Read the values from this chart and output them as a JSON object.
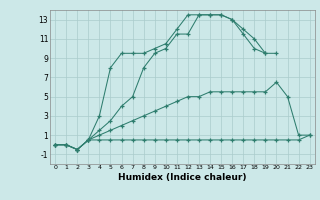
{
  "xlabel": "Humidex (Indice chaleur)",
  "bg_color": "#cce8e8",
  "line_color": "#2e7d6e",
  "grid_color": "#aacccc",
  "xlim": [
    -0.5,
    23.5
  ],
  "ylim": [
    -2.0,
    14.0
  ],
  "xticks": [
    0,
    1,
    2,
    3,
    4,
    5,
    6,
    7,
    8,
    9,
    10,
    11,
    12,
    13,
    14,
    15,
    16,
    17,
    18,
    19,
    20,
    21,
    22,
    23
  ],
  "yticks": [
    -1,
    1,
    3,
    5,
    7,
    9,
    11,
    13
  ],
  "line1_x": [
    0,
    1,
    2,
    3,
    4,
    5,
    6,
    7,
    8,
    9,
    10,
    11,
    12,
    13,
    14,
    15,
    16,
    17,
    18,
    19,
    20,
    21,
    22,
    23
  ],
  "line1_y": [
    0.0,
    0.0,
    -0.5,
    0.5,
    0.5,
    0.5,
    0.5,
    0.5,
    0.5,
    0.5,
    0.5,
    0.5,
    0.5,
    0.5,
    0.5,
    0.5,
    0.5,
    0.5,
    0.5,
    0.5,
    0.5,
    0.5,
    0.5,
    1.0
  ],
  "line2_x": [
    0,
    1,
    2,
    3,
    4,
    5,
    6,
    7,
    8,
    9,
    10,
    11,
    12,
    13,
    14,
    15,
    16,
    17,
    18,
    19,
    20,
    21,
    22,
    23
  ],
  "line2_y": [
    0.0,
    0.0,
    -0.5,
    0.5,
    1.0,
    1.5,
    2.0,
    2.5,
    3.0,
    3.5,
    4.0,
    4.5,
    5.0,
    5.0,
    5.5,
    5.5,
    5.5,
    5.5,
    5.5,
    5.5,
    6.5,
    5.0,
    1.0,
    1.0
  ],
  "line3_x": [
    0,
    1,
    2,
    3,
    4,
    5,
    6,
    7,
    8,
    9,
    10,
    11,
    12,
    13,
    14,
    15,
    16,
    17,
    18,
    19,
    20,
    21,
    22
  ],
  "line3_y": [
    0.0,
    0.0,
    -0.5,
    0.5,
    1.5,
    2.5,
    4.0,
    5.0,
    8.0,
    9.5,
    10.0,
    11.5,
    11.5,
    13.5,
    13.5,
    13.5,
    13.0,
    12.0,
    11.0,
    9.5,
    9.5,
    null,
    null
  ],
  "line4_x": [
    0,
    1,
    2,
    3,
    4,
    5,
    6,
    7,
    8,
    9,
    10,
    11,
    12,
    13,
    14,
    15,
    16,
    17,
    18,
    19
  ],
  "line4_y": [
    0.0,
    0.0,
    -0.5,
    0.5,
    3.0,
    8.0,
    9.5,
    9.5,
    9.5,
    10.0,
    10.5,
    12.0,
    13.5,
    13.5,
    13.5,
    13.5,
    13.0,
    11.5,
    10.0,
    9.5
  ]
}
